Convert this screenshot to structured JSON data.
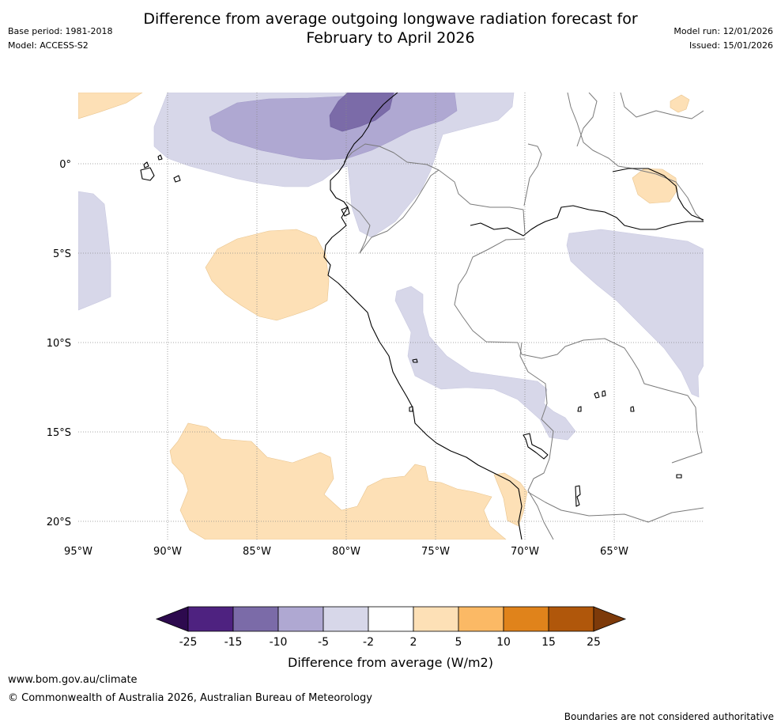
{
  "header": {
    "title_line1": "Difference from average outgoing longwave radiation forecast for",
    "title_line2": "February to April 2026",
    "base_period": "Base period: 1981-2018",
    "model": "Model: ACCESS-S2",
    "model_run": "Model run: 12/01/2026",
    "issued": "Issued: 15/01/2026"
  },
  "map": {
    "lon_labels": [
      "95°W",
      "90°W",
      "85°W",
      "80°W",
      "75°W",
      "70°W",
      "65°W"
    ],
    "lat_labels": [
      "0°",
      "5°S",
      "10°S",
      "15°S",
      "20°S"
    ],
    "extent": {
      "lon_min": -95,
      "lon_max": -60,
      "lat_min": -21,
      "lat_max": 4
    }
  },
  "colorbar": {
    "title": "Difference from average (W/m2)",
    "ticks": [
      "-25",
      "-15",
      "-10",
      "-5",
      "-2",
      "2",
      "5",
      "10",
      "15",
      "25"
    ],
    "colors": {
      "below_min": "#2d0a4e",
      "c1": "#4e2280",
      "c2": "#7b6ba8",
      "c3": "#afa8d2",
      "c4": "#d7d7e9",
      "c5": "#ffffff",
      "c6": "#fde0b6",
      "c7": "#fbb965",
      "c8": "#e0831b",
      "c9": "#b0570b",
      "above_max": "#7d3a0a"
    }
  },
  "footer": {
    "url": "www.bom.gov.au/climate",
    "copyright": "© Commonwealth of Australia 2026, Australian Bureau of Meteorology",
    "note": "Boundaries are not considered authoritative"
  }
}
